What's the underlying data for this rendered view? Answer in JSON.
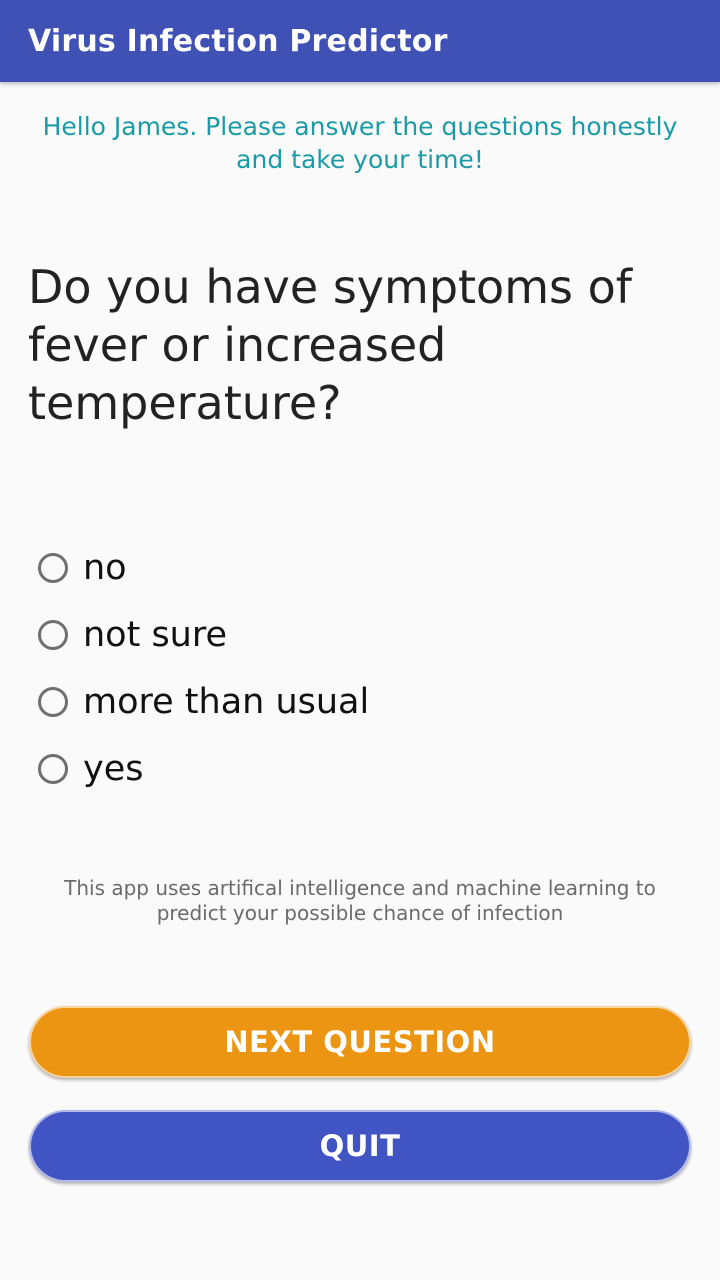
{
  "app_bar": {
    "title": "Virus Infection Predictor"
  },
  "greeting": "Hello James. Please answer the questions honestly and take your time!",
  "question": "Do you have symptoms of fever or increased temperature?",
  "options": [
    {
      "label": "no",
      "selected": false
    },
    {
      "label": "not sure",
      "selected": false
    },
    {
      "label": "more than usual",
      "selected": false
    },
    {
      "label": "yes",
      "selected": false
    }
  ],
  "disclaimer": "This app uses artifical intelligence and machine learning to predict your possible chance of infection",
  "buttons": {
    "next_label": "NEXT QUESTION",
    "quit_label": "QUIT"
  },
  "colors": {
    "app_bar": "#3f51b5",
    "greeting_text": "#1a9ba6",
    "next_button": "#eb9513",
    "quit_button": "#4154c4"
  }
}
